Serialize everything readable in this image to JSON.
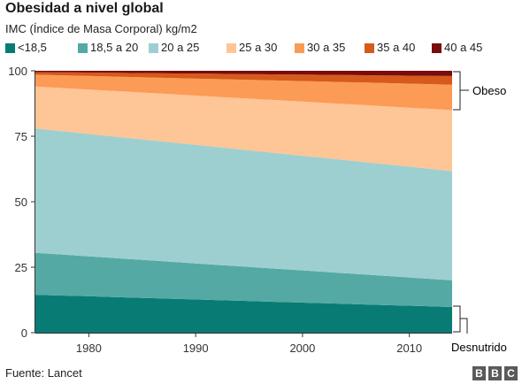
{
  "title": "Obesidad a nivel global",
  "subtitle": "IMC (Índice de Masa Corporal) kg/m2",
  "source": "Fuente: Lancet",
  "logo": [
    "B",
    "B",
    "C"
  ],
  "annotations": {
    "top": "Obeso",
    "bottom": "Desnutrido"
  },
  "chart_data": {
    "type": "area",
    "stacked": true,
    "x": [
      1975,
      2014
    ],
    "xticks": [
      1980,
      1990,
      2000,
      2010
    ],
    "yticks": [
      0,
      25,
      50,
      75,
      100
    ],
    "ylim": [
      0,
      100
    ],
    "xlim": [
      1975,
      2014
    ],
    "grid": false,
    "legend_position": "top",
    "series": [
      {
        "name": "<18,5",
        "color": "#087c74",
        "values": [
          14.5,
          9.8
        ]
      },
      {
        "name": "18,5 a 20",
        "color": "#55a9a5",
        "values": [
          16.0,
          10.2
        ]
      },
      {
        "name": "20 a 25",
        "color": "#9ecfd0",
        "values": [
          47.5,
          41.7
        ]
      },
      {
        "name": "25 a 30",
        "color": "#fec596",
        "values": [
          16.0,
          23.3
        ]
      },
      {
        "name": "30 a 35",
        "color": "#fb9b55",
        "values": [
          4.5,
          9.7
        ]
      },
      {
        "name": "35 a 40",
        "color": "#d65a1b",
        "values": [
          1.0,
          3.3
        ]
      },
      {
        "name": "40 a 45",
        "color": "#7a0c0c",
        "values": [
          0.5,
          2.0
        ]
      }
    ]
  }
}
